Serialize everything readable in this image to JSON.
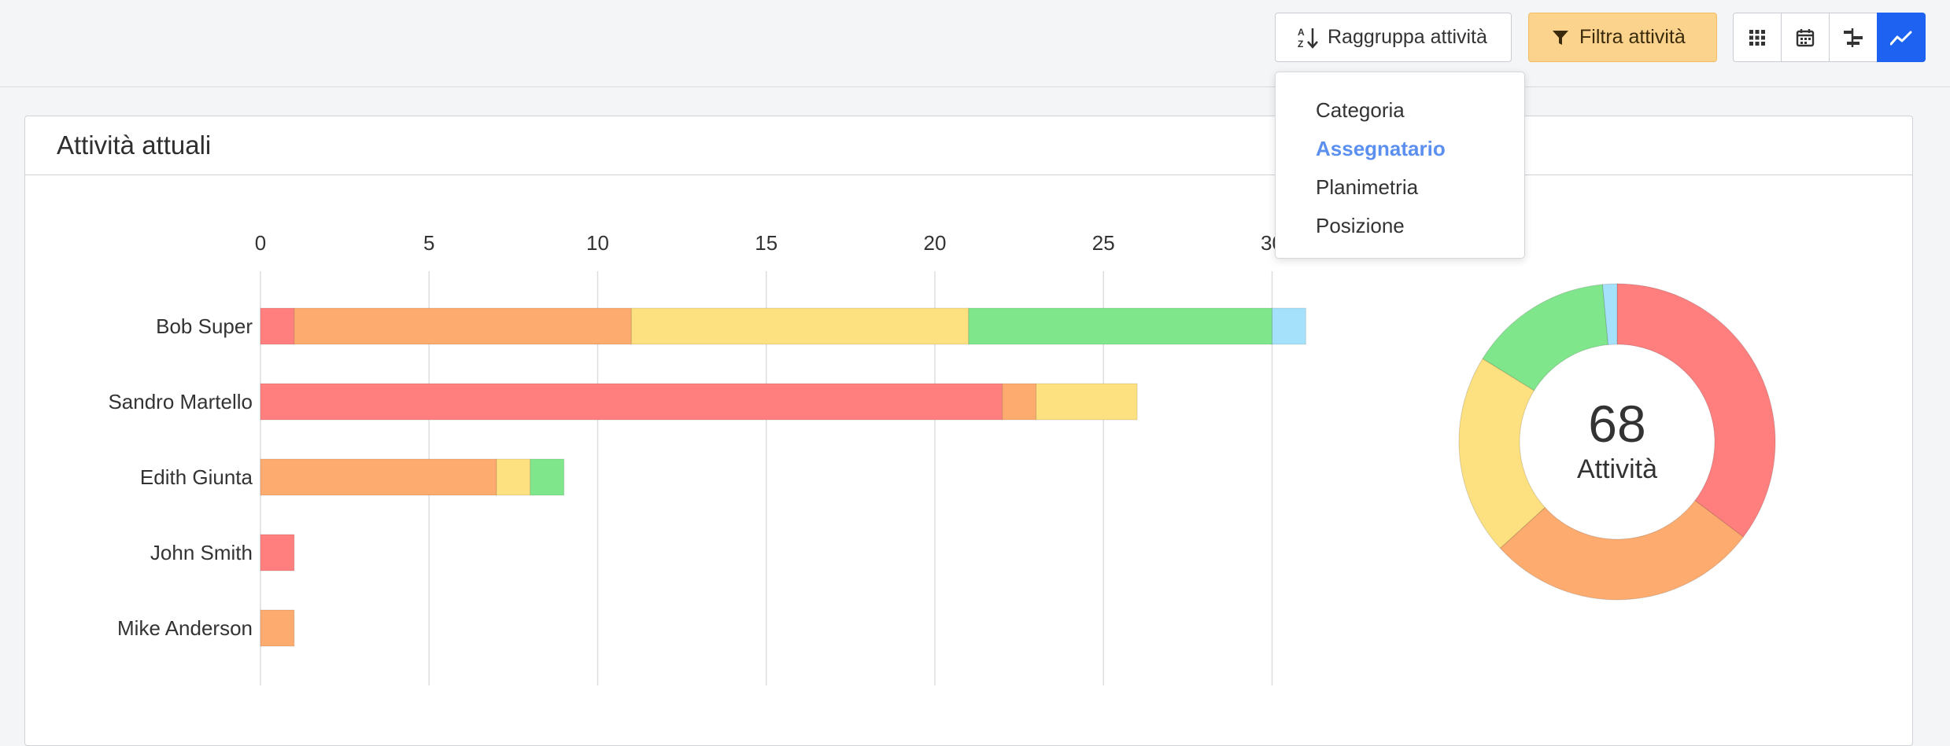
{
  "toolbar": {
    "group_label": "Raggruppa attività",
    "filter_label": "Filtra attività",
    "view_buttons": [
      "grid-view",
      "calendar-view",
      "timeline-view",
      "chart-view"
    ],
    "filter_color": "#fcd38c",
    "active_view_color": "#1d62f0"
  },
  "dropdown": {
    "items": [
      "Categoria",
      "Assegnatario",
      "Planimetria",
      "Posizione"
    ],
    "selected": "Assegnatario"
  },
  "panel": {
    "title": "Attività attuali"
  },
  "donut": {
    "total": "68",
    "label": "Attività"
  },
  "chart_data": [
    {
      "type": "bar",
      "orientation": "horizontal",
      "stacked": true,
      "categories": [
        "Bob Super",
        "Sandro Martello",
        "Edith Giunta",
        "John Smith",
        "Mike Anderson"
      ],
      "series": [
        {
          "color": "#ff7f7f",
          "values": [
            1,
            22,
            0,
            1,
            0
          ]
        },
        {
          "color": "#fdab6e",
          "values": [
            10,
            1,
            7,
            0,
            1
          ]
        },
        {
          "color": "#fde07f",
          "values": [
            10,
            3,
            1,
            0,
            0
          ]
        },
        {
          "color": "#80e68c",
          "values": [
            9,
            0,
            1,
            0,
            0
          ]
        },
        {
          "color": "#a6e1fb",
          "values": [
            1,
            0,
            0,
            0,
            0
          ]
        }
      ],
      "x_ticks": [
        0,
        5,
        10,
        15,
        20,
        25,
        30
      ],
      "xlim": [
        0,
        30
      ],
      "axis_position": "top",
      "grid": true
    },
    {
      "type": "pie",
      "donut": true,
      "slices": [
        {
          "color": "#ff7f7f",
          "value": 24
        },
        {
          "color": "#fdab6e",
          "value": 19
        },
        {
          "color": "#fde07f",
          "value": 14
        },
        {
          "color": "#80e68c",
          "value": 10
        },
        {
          "color": "#a6e1fb",
          "value": 1
        }
      ]
    }
  ]
}
